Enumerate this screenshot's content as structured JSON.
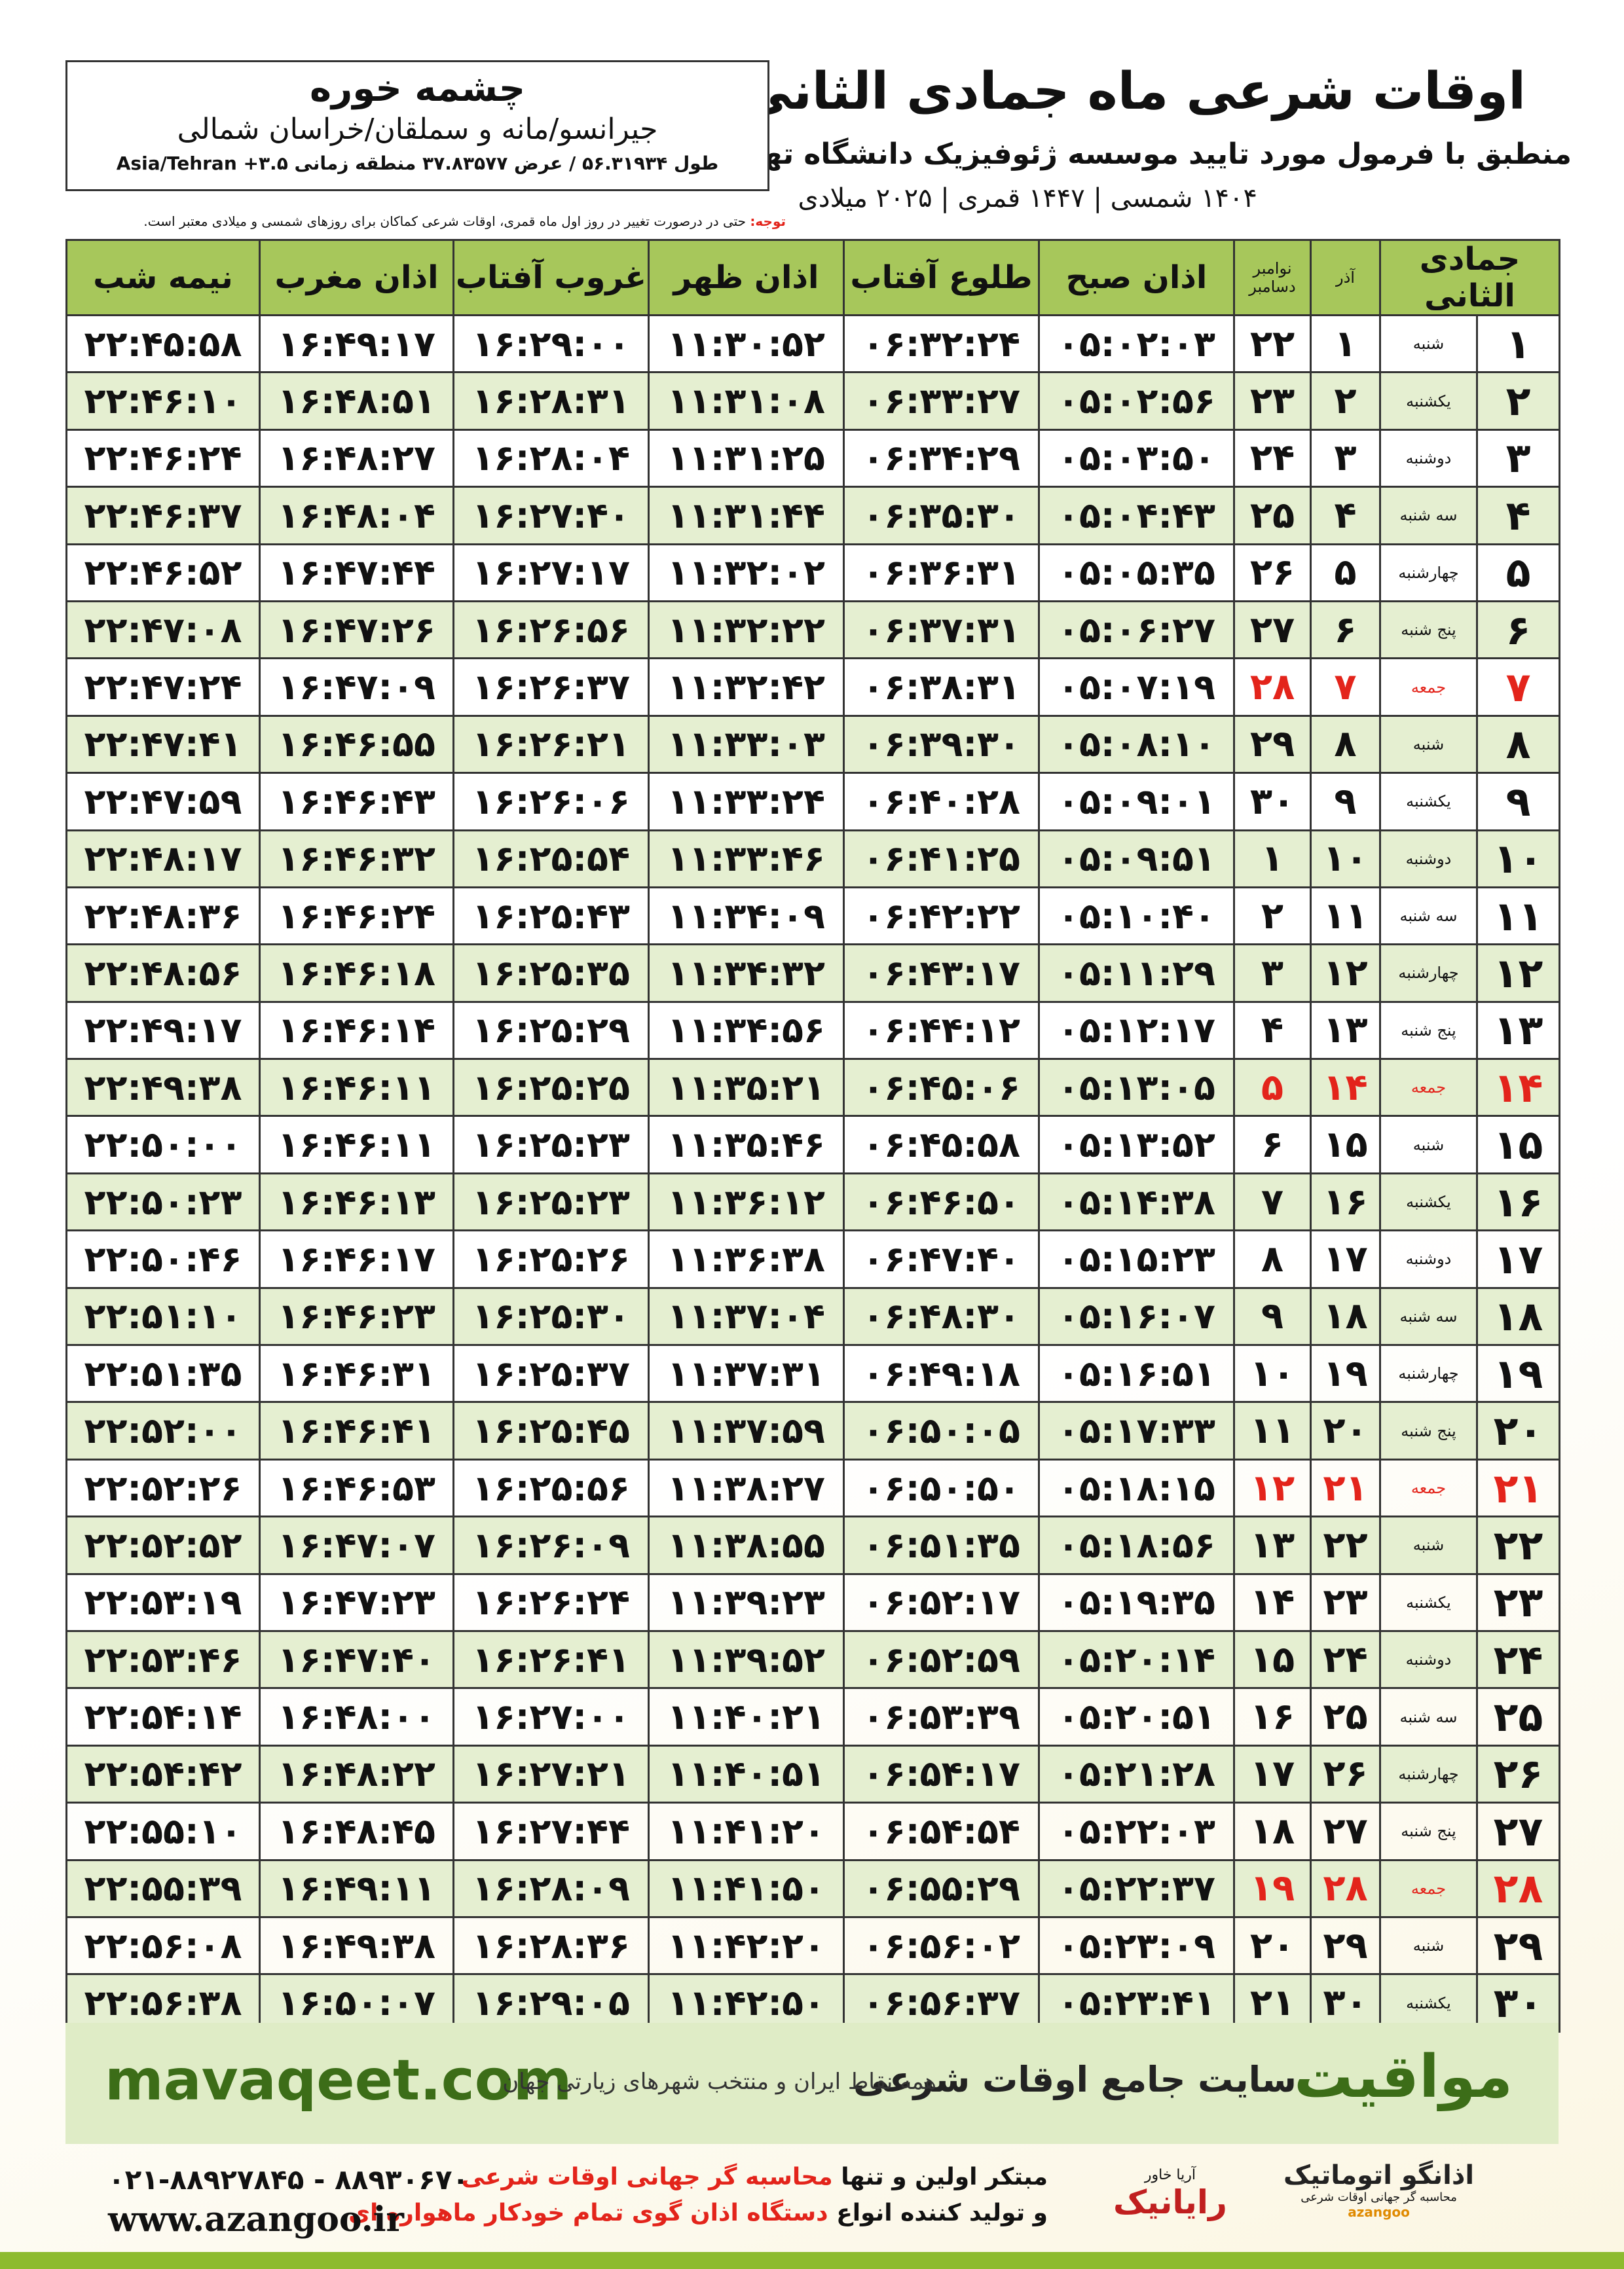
{
  "header": {
    "title": "اوقات شرعی ماه جمادی الثانی",
    "subtitle": "منطبق با فرمول مورد تایید موسسه ژئوفیزیک دانشگاه تهران",
    "years": "۱۴۰۴ شمسی | ۱۴۴۷ قمری | ۲۰۲۵ میلادی",
    "city": "چشمه خوره",
    "region": "جیرانسو/مانه و سملقان/خراسان شمالی",
    "coords": "طول ۵۶.۳۱۹۳۴ / عرض ۳۷.۸۳۵۷۷ منطقه زمانی Asia/Tehran +۳.۵",
    "note_label": "توجه:",
    "note": "حتی در درصورت تغییر در روز اول ماه قمری، اوقات شرعی کماکان برای روزهای شمسی و میلادی معتبر است."
  },
  "table": {
    "columns": [
      "جمادی الثانی",
      "",
      "آذر",
      [
        "نوامبر",
        "دسامبر"
      ],
      "اذان صبح",
      "طلوع آفتاب",
      "اذان ظهر",
      "غروب آفتاب",
      "اذان مغرب",
      "نیمه شب"
    ],
    "rows": [
      {
        "cells": [
          "۱",
          "شنبه",
          "۱",
          "۲۲",
          "۰۵:۰۲:۰۳",
          "۰۶:۳۲:۲۴",
          "۱۱:۳۰:۵۲",
          "۱۶:۲۹:۰۰",
          "۱۶:۴۹:۱۷",
          "۲۲:۴۵:۵۸"
        ]
      },
      {
        "cells": [
          "۲",
          "یکشنبه",
          "۲",
          "۲۳",
          "۰۵:۰۲:۵۶",
          "۰۶:۳۳:۲۷",
          "۱۱:۳۱:۰۸",
          "۱۶:۲۸:۳۱",
          "۱۶:۴۸:۵۱",
          "۲۲:۴۶:۱۰"
        ]
      },
      {
        "cells": [
          "۳",
          "دوشنبه",
          "۳",
          "۲۴",
          "۰۵:۰۳:۵۰",
          "۰۶:۳۴:۲۹",
          "۱۱:۳۱:۲۵",
          "۱۶:۲۸:۰۴",
          "۱۶:۴۸:۲۷",
          "۲۲:۴۶:۲۴"
        ]
      },
      {
        "cells": [
          "۴",
          "سه شنبه",
          "۴",
          "۲۵",
          "۰۵:۰۴:۴۳",
          "۰۶:۳۵:۳۰",
          "۱۱:۳۱:۴۴",
          "۱۶:۲۷:۴۰",
          "۱۶:۴۸:۰۴",
          "۲۲:۴۶:۳۷"
        ]
      },
      {
        "cells": [
          "۵",
          "چهارشنبه",
          "۵",
          "۲۶",
          "۰۵:۰۵:۳۵",
          "۰۶:۳۶:۳۱",
          "۱۱:۳۲:۰۲",
          "۱۶:۲۷:۱۷",
          "۱۶:۴۷:۴۴",
          "۲۲:۴۶:۵۲"
        ]
      },
      {
        "cells": [
          "۶",
          "پنج شنبه",
          "۶",
          "۲۷",
          "۰۵:۰۶:۲۷",
          "۰۶:۳۷:۳۱",
          "۱۱:۳۲:۲۲",
          "۱۶:۲۶:۵۶",
          "۱۶:۴۷:۲۶",
          "۲۲:۴۷:۰۸"
        ]
      },
      {
        "cells": [
          "۷",
          "جمعه",
          "۷",
          "۲۸",
          "۰۵:۰۷:۱۹",
          "۰۶:۳۸:۳۱",
          "۱۱:۳۲:۴۲",
          "۱۶:۲۶:۳۷",
          "۱۶:۴۷:۰۹",
          "۲۲:۴۷:۲۴"
        ],
        "color": "#e3241b"
      },
      {
        "cells": [
          "۸",
          "شنبه",
          "۸",
          "۲۹",
          "۰۵:۰۸:۱۰",
          "۰۶:۳۹:۳۰",
          "۱۱:۳۳:۰۳",
          "۱۶:۲۶:۲۱",
          "۱۶:۴۶:۵۵",
          "۲۲:۴۷:۴۱"
        ]
      },
      {
        "cells": [
          "۹",
          "یکشنبه",
          "۹",
          "۳۰",
          "۰۵:۰۹:۰۱",
          "۰۶:۴۰:۲۸",
          "۱۱:۳۳:۲۴",
          "۱۶:۲۶:۰۶",
          "۱۶:۴۶:۴۳",
          "۲۲:۴۷:۵۹"
        ]
      },
      {
        "cells": [
          "۱۰",
          "دوشنبه",
          "۱۰",
          "۱",
          "۰۵:۰۹:۵۱",
          "۰۶:۴۱:۲۵",
          "۱۱:۳۳:۴۶",
          "۱۶:۲۵:۵۴",
          "۱۶:۴۶:۳۲",
          "۲۲:۴۸:۱۷"
        ]
      },
      {
        "cells": [
          "۱۱",
          "سه شنبه",
          "۱۱",
          "۲",
          "۰۵:۱۰:۴۰",
          "۰۶:۴۲:۲۲",
          "۱۱:۳۴:۰۹",
          "۱۶:۲۵:۴۳",
          "۱۶:۴۶:۲۴",
          "۲۲:۴۸:۳۶"
        ]
      },
      {
        "cells": [
          "۱۲",
          "چهارشنبه",
          "۱۲",
          "۳",
          "۰۵:۱۱:۲۹",
          "۰۶:۴۳:۱۷",
          "۱۱:۳۴:۳۲",
          "۱۶:۲۵:۳۵",
          "۱۶:۴۶:۱۸",
          "۲۲:۴۸:۵۶"
        ]
      },
      {
        "cells": [
          "۱۳",
          "پنج شنبه",
          "۱۳",
          "۴",
          "۰۵:۱۲:۱۷",
          "۰۶:۴۴:۱۲",
          "۱۱:۳۴:۵۶",
          "۱۶:۲۵:۲۹",
          "۱۶:۴۶:۱۴",
          "۲۲:۴۹:۱۷"
        ]
      },
      {
        "cells": [
          "۱۴",
          "جمعه",
          "۱۴",
          "۵",
          "۰۵:۱۳:۰۵",
          "۰۶:۴۵:۰۶",
          "۱۱:۳۵:۲۱",
          "۱۶:۲۵:۲۵",
          "۱۶:۴۶:۱۱",
          "۲۲:۴۹:۳۸"
        ],
        "color": "#e3241b"
      },
      {
        "cells": [
          "۱۵",
          "شنبه",
          "۱۵",
          "۶",
          "۰۵:۱۳:۵۲",
          "۰۶:۴۵:۵۸",
          "۱۱:۳۵:۴۶",
          "۱۶:۲۵:۲۳",
          "۱۶:۴۶:۱۱",
          "۲۲:۵۰:۰۰"
        ]
      },
      {
        "cells": [
          "۱۶",
          "یکشنبه",
          "۱۶",
          "۷",
          "۰۵:۱۴:۳۸",
          "۰۶:۴۶:۵۰",
          "۱۱:۳۶:۱۲",
          "۱۶:۲۵:۲۳",
          "۱۶:۴۶:۱۳",
          "۲۲:۵۰:۲۳"
        ]
      },
      {
        "cells": [
          "۱۷",
          "دوشنبه",
          "۱۷",
          "۸",
          "۰۵:۱۵:۲۳",
          "۰۶:۴۷:۴۰",
          "۱۱:۳۶:۳۸",
          "۱۶:۲۵:۲۶",
          "۱۶:۴۶:۱۷",
          "۲۲:۵۰:۴۶"
        ]
      },
      {
        "cells": [
          "۱۸",
          "سه شنبه",
          "۱۸",
          "۹",
          "۰۵:۱۶:۰۷",
          "۰۶:۴۸:۳۰",
          "۱۱:۳۷:۰۴",
          "۱۶:۲۵:۳۰",
          "۱۶:۴۶:۲۳",
          "۲۲:۵۱:۱۰"
        ]
      },
      {
        "cells": [
          "۱۹",
          "چهارشنبه",
          "۱۹",
          "۱۰",
          "۰۵:۱۶:۵۱",
          "۰۶:۴۹:۱۸",
          "۱۱:۳۷:۳۱",
          "۱۶:۲۵:۳۷",
          "۱۶:۴۶:۳۱",
          "۲۲:۵۱:۳۵"
        ]
      },
      {
        "cells": [
          "۲۰",
          "پنج شنبه",
          "۲۰",
          "۱۱",
          "۰۵:۱۷:۳۳",
          "۰۶:۵۰:۰۵",
          "۱۱:۳۷:۵۹",
          "۱۶:۲۵:۴۵",
          "۱۶:۴۶:۴۱",
          "۲۲:۵۲:۰۰"
        ]
      },
      {
        "cells": [
          "۲۱",
          "جمعه",
          "۲۱",
          "۱۲",
          "۰۵:۱۸:۱۵",
          "۰۶:۵۰:۵۰",
          "۱۱:۳۸:۲۷",
          "۱۶:۲۵:۵۶",
          "۱۶:۴۶:۵۳",
          "۲۲:۵۲:۲۶"
        ],
        "color": "#e3241b"
      },
      {
        "cells": [
          "۲۲",
          "شنبه",
          "۲۲",
          "۱۳",
          "۰۵:۱۸:۵۶",
          "۰۶:۵۱:۳۵",
          "۱۱:۳۸:۵۵",
          "۱۶:۲۶:۰۹",
          "۱۶:۴۷:۰۷",
          "۲۲:۵۲:۵۲"
        ]
      },
      {
        "cells": [
          "۲۳",
          "یکشنبه",
          "۲۳",
          "۱۴",
          "۰۵:۱۹:۳۵",
          "۰۶:۵۲:۱۷",
          "۱۱:۳۹:۲۳",
          "۱۶:۲۶:۲۴",
          "۱۶:۴۷:۲۳",
          "۲۲:۵۳:۱۹"
        ]
      },
      {
        "cells": [
          "۲۴",
          "دوشنبه",
          "۲۴",
          "۱۵",
          "۰۵:۲۰:۱۴",
          "۰۶:۵۲:۵۹",
          "۱۱:۳۹:۵۲",
          "۱۶:۲۶:۴۱",
          "۱۶:۴۷:۴۰",
          "۲۲:۵۳:۴۶"
        ]
      },
      {
        "cells": [
          "۲۵",
          "سه شنبه",
          "۲۵",
          "۱۶",
          "۰۵:۲۰:۵۱",
          "۰۶:۵۳:۳۹",
          "۱۱:۴۰:۲۱",
          "۱۶:۲۷:۰۰",
          "۱۶:۴۸:۰۰",
          "۲۲:۵۴:۱۴"
        ]
      },
      {
        "cells": [
          "۲۶",
          "چهارشنبه",
          "۲۶",
          "۱۷",
          "۰۵:۲۱:۲۸",
          "۰۶:۵۴:۱۷",
          "۱۱:۴۰:۵۱",
          "۱۶:۲۷:۲۱",
          "۱۶:۴۸:۲۲",
          "۲۲:۵۴:۴۲"
        ]
      },
      {
        "cells": [
          "۲۷",
          "پنج شنبه",
          "۲۷",
          "۱۸",
          "۰۵:۲۲:۰۳",
          "۰۶:۵۴:۵۴",
          "۱۱:۴۱:۲۰",
          "۱۶:۲۷:۴۴",
          "۱۶:۴۸:۴۵",
          "۲۲:۵۵:۱۰"
        ]
      },
      {
        "cells": [
          "۲۸",
          "جمعه",
          "۲۸",
          "۱۹",
          "۰۵:۲۲:۳۷",
          "۰۶:۵۵:۲۹",
          "۱۱:۴۱:۵۰",
          "۱۶:۲۸:۰۹",
          "۱۶:۴۹:۱۱",
          "۲۲:۵۵:۳۹"
        ],
        "color": "#e3241b"
      },
      {
        "cells": [
          "۲۹",
          "شنبه",
          "۲۹",
          "۲۰",
          "۰۵:۲۳:۰۹",
          "۰۶:۵۶:۰۲",
          "۱۱:۴۲:۲۰",
          "۱۶:۲۸:۳۶",
          "۱۶:۴۹:۳۸",
          "۲۲:۵۶:۰۸"
        ]
      },
      {
        "cells": [
          "۳۰",
          "یکشنبه",
          "۳۰",
          "۲۱",
          "۰۵:۲۳:۴۱",
          "۰۶:۵۶:۳۷",
          "۱۱:۴۲:۵۰",
          "۱۶:۲۹:۰۵",
          "۱۶:۵۰:۰۷",
          "۲۲:۵۶:۳۸"
        ]
      }
    ]
  },
  "banner": {
    "brand": "مواقیت",
    "tagline": "سایت جامع اوقات شرعی",
    "subtag": "همه نقاط ایران و منتخب شهرهای زیارتی جهان",
    "url": "mavaqeet.com"
  },
  "footer": {
    "line1_a": "مبتکر اولین و تنها",
    "line1_b": "محاسبه گر جهانی اوقات شرعی",
    "line2_a": "و تولید کننده انواع",
    "line2_b": "دستگاه اذان گوی تمام خودکار ماهواره ای",
    "phone": "۰۲۱-۸۸۹۲۷۸۴۵ - ۸۸۹۳۰۶۷۰",
    "website": "www.azangoo.ir",
    "logo1": "رایانیک",
    "logo1_sub": "آریا خاور",
    "logo2": "اذانگو اتوماتیک",
    "logo2_sub": "محاسبه گر جهانی اوقات شرعی",
    "logo2_en": "azangoo"
  }
}
